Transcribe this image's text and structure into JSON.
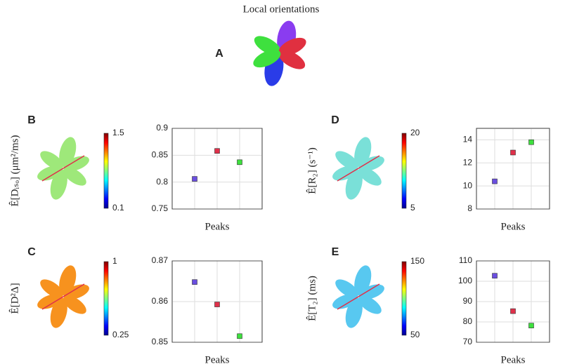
{
  "title": "Local orientations",
  "panel_label": "A",
  "chart_data": [
    {
      "type": "scatter",
      "panel_label": "B",
      "ylabel": "Ê[Dᵢₛₒ] (μm²/ms)",
      "xlabel": "Peaks",
      "categories": [
        null,
        null,
        null
      ],
      "values": [
        0.806,
        0.858,
        0.837
      ],
      "colors": [
        "#6a4ee0",
        "#e0304a",
        "#3ee03e"
      ],
      "ylim": [
        0.75,
        0.9
      ],
      "yticks": [
        0.75,
        0.8,
        0.85,
        0.9
      ],
      "grid": true,
      "colorbar": {
        "lim": [
          0.1,
          1.5
        ],
        "ticks": [
          0.1,
          1.5
        ]
      }
    },
    {
      "type": "scatter",
      "panel_label": "C",
      "ylabel": "Ê[D²Δ]",
      "xlabel": "Peaks",
      "categories": [
        null,
        null,
        null
      ],
      "values": [
        0.8648,
        0.8593,
        0.8515
      ],
      "colors": [
        "#6a4ee0",
        "#e0304a",
        "#3ee03e"
      ],
      "ylim": [
        0.85,
        0.87
      ],
      "yticks": [
        0.85,
        0.86,
        0.87
      ],
      "grid": true,
      "colorbar": {
        "lim": [
          0.25,
          1
        ],
        "ticks": [
          0.25,
          1
        ]
      }
    },
    {
      "type": "scatter",
      "panel_label": "D",
      "ylabel": "Ê[R₂] (s⁻¹)",
      "xlabel": "Peaks",
      "categories": [
        null,
        null,
        null
      ],
      "values": [
        10.4,
        12.9,
        13.8
      ],
      "colors": [
        "#6a4ee0",
        "#e0304a",
        "#3ee03e"
      ],
      "ylim": [
        8,
        15
      ],
      "yticks": [
        8,
        10,
        12,
        14
      ],
      "grid": true,
      "colorbar": {
        "lim": [
          5,
          20
        ],
        "ticks": [
          5,
          20
        ]
      }
    },
    {
      "type": "scatter",
      "panel_label": "E",
      "ylabel": "Ê[T₂] (ms)",
      "xlabel": "Peaks",
      "categories": [
        null,
        null,
        null
      ],
      "values": [
        102.7,
        85.3,
        78.2
      ],
      "colors": [
        "#6a4ee0",
        "#e0304a",
        "#3ee03e"
      ],
      "ylim": [
        70,
        110
      ],
      "yticks": [
        70,
        80,
        90,
        100,
        110
      ],
      "grid": true,
      "colorbar": {
        "lim": [
          50,
          150
        ],
        "ticks": [
          50,
          150
        ]
      }
    }
  ]
}
